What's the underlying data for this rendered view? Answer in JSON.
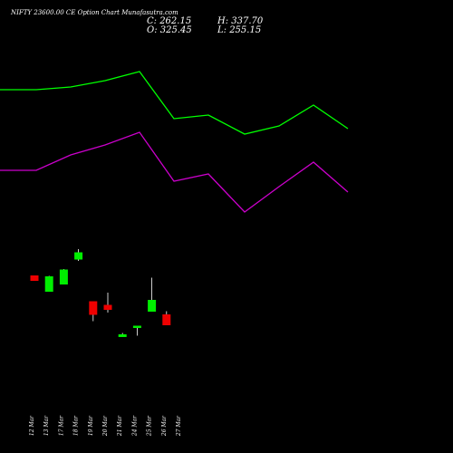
{
  "title": "NIFTY 23600.00  CE Option  Chart Munafasutra.com",
  "ohlc": {
    "close": "C: 262.15",
    "open": "O: 325.45",
    "high": "H: 337.70",
    "low": "L: 255.15"
  },
  "colors": {
    "background": "#000000",
    "up": "#00ee00",
    "down": "#ee0000",
    "upper_band": "#00ff00",
    "lower_band": "#cc00cc",
    "wick": "#ffffff",
    "text": "#ffffff"
  },
  "chart_data": {
    "type": "candlestick",
    "title": "NIFTY 23600.00  CE Option  Chart Munafasutra.com",
    "x_ticks": [
      "12 Mar",
      "13 Mar",
      "17 Mar",
      "18 Mar",
      "19 Mar",
      "20 Mar",
      "21 Mar",
      "24 Mar",
      "25 Mar",
      "26 Mar",
      "27 Mar"
    ],
    "candles": [
      {
        "date": "12 Mar",
        "open": 338,
        "high": 338,
        "low": 326,
        "close": 326
      },
      {
        "date": "13 Mar",
        "open": 302,
        "high": 337,
        "low": 302,
        "close": 336
      },
      {
        "date": "17 Mar",
        "open": 318,
        "high": 352,
        "low": 318,
        "close": 351
      },
      {
        "date": "18 Mar",
        "open": 373,
        "high": 396,
        "low": 370,
        "close": 389
      },
      {
        "date": "19 Mar",
        "open": 281,
        "high": 281,
        "low": 237,
        "close": 251
      },
      {
        "date": "20 Mar",
        "open": 273,
        "high": 300,
        "low": 256,
        "close": 262
      },
      {
        "date": "21 Mar",
        "open": 202,
        "high": 211,
        "low": 202,
        "close": 208
      },
      {
        "date": "24 Mar",
        "open": 226,
        "high": 227,
        "low": 205,
        "close": 227
      },
      {
        "date": "25 Mar",
        "open": 258,
        "high": 333,
        "low": 258,
        "close": 284
      },
      {
        "date": "26 Mar",
        "open": 252,
        "high": 259,
        "low": 228,
        "close": 228
      }
    ],
    "bands": [
      {
        "name": "",
        "color": "#00ff00",
        "points": [
          [
            0,
            99
          ],
          [
            40,
            99
          ],
          [
            78,
            96
          ],
          [
            116,
            89
          ],
          [
            154,
            79
          ],
          [
            192,
            131
          ],
          [
            230,
            127
          ],
          [
            270,
            148
          ],
          [
            308,
            139
          ],
          [
            346,
            116
          ],
          [
            384,
            142
          ]
        ]
      },
      {
        "name": "",
        "color": "#cc00cc",
        "points": [
          [
            0,
            188
          ],
          [
            40,
            188
          ],
          [
            78,
            171
          ],
          [
            116,
            160
          ],
          [
            154,
            146
          ],
          [
            192,
            200
          ],
          [
            230,
            192
          ],
          [
            270,
            234
          ],
          [
            308,
            206
          ],
          [
            346,
            179
          ],
          [
            384,
            212
          ]
        ]
      }
    ]
  }
}
